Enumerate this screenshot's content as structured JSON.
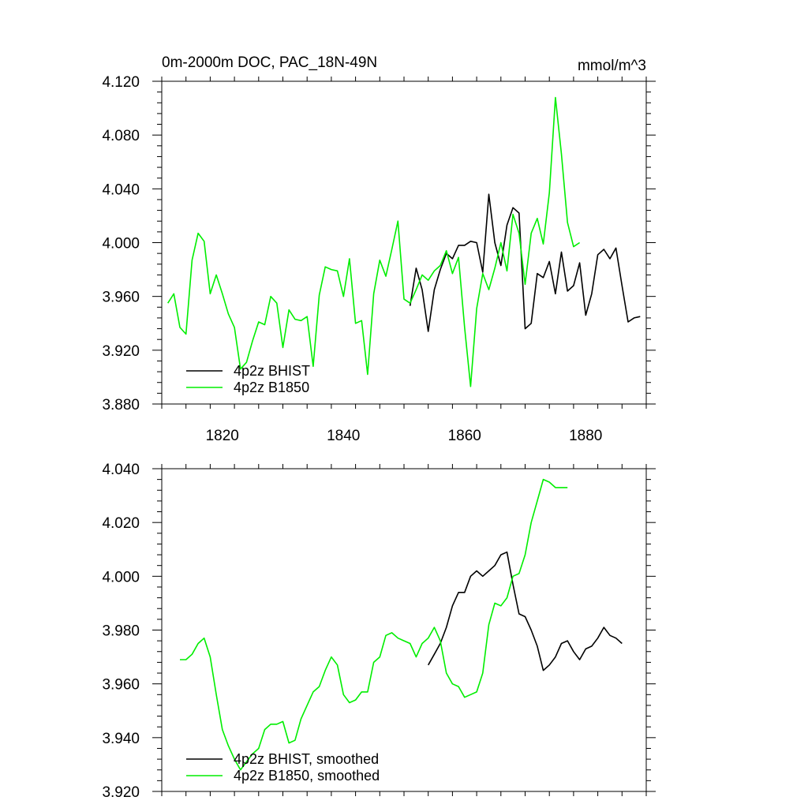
{
  "chart_data": [
    {
      "type": "line",
      "title": "0m-2000m DOC, PAC_18N-49N",
      "units": "mmol/m^3",
      "xlim": [
        1810,
        1890
      ],
      "ylim": [
        3.88,
        4.12
      ],
      "xticks": [
        1820,
        1840,
        1860,
        1880
      ],
      "x_tick_labels": [
        "1820",
        "1840",
        "1860",
        "1880"
      ],
      "yticks": [
        3.88,
        3.92,
        3.96,
        4.0,
        4.04,
        4.08,
        4.12
      ],
      "y_tick_labels": [
        "3.880",
        "3.920",
        "3.960",
        "4.000",
        "4.040",
        "4.080",
        "4.120"
      ],
      "grid": false,
      "legend_position": "bottom-left",
      "series": [
        {
          "name": "4p2z BHIST",
          "color": "#000000",
          "x": [
            1851,
            1852,
            1853,
            1854,
            1855,
            1856,
            1857,
            1858,
            1859,
            1860,
            1861,
            1862,
            1863,
            1864,
            1865,
            1866,
            1867,
            1868,
            1869,
            1870,
            1871,
            1872,
            1873,
            1874,
            1875,
            1876,
            1877,
            1878,
            1879,
            1880,
            1881,
            1882,
            1883,
            1884,
            1885,
            1886,
            1887,
            1888,
            1889
          ],
          "y": [
            3.953,
            3.981,
            3.965,
            3.934,
            3.965,
            3.98,
            3.992,
            3.988,
            3.998,
            3.998,
            4.001,
            4.0,
            3.978,
            4.036,
            4.0,
            3.983,
            4.013,
            4.026,
            4.022,
            3.936,
            3.94,
            3.977,
            3.974,
            3.986,
            3.962,
            3.993,
            3.964,
            3.968,
            3.985,
            3.946,
            3.962,
            3.991,
            3.995,
            3.988,
            3.996,
            3.968,
            3.941,
            3.944,
            3.945
          ]
        },
        {
          "name": "4p2z B1850",
          "color": "#00ee00",
          "x": [
            1811,
            1812,
            1813,
            1814,
            1815,
            1816,
            1817,
            1818,
            1819,
            1820,
            1821,
            1822,
            1823,
            1824,
            1825,
            1826,
            1827,
            1828,
            1829,
            1830,
            1831,
            1832,
            1833,
            1834,
            1835,
            1836,
            1837,
            1838,
            1839,
            1840,
            1841,
            1842,
            1843,
            1844,
            1845,
            1846,
            1847,
            1848,
            1849,
            1850,
            1851,
            1852,
            1853,
            1854,
            1855,
            1856,
            1857,
            1858,
            1859,
            1860,
            1861,
            1862,
            1863,
            1864,
            1865,
            1866,
            1867,
            1868,
            1869,
            1870,
            1871,
            1872,
            1873,
            1874,
            1875,
            1876,
            1877,
            1878,
            1879
          ],
          "y": [
            3.955,
            3.962,
            3.937,
            3.932,
            3.987,
            4.007,
            4.001,
            3.962,
            3.976,
            3.962,
            3.947,
            3.937,
            3.906,
            3.911,
            3.927,
            3.941,
            3.939,
            3.96,
            3.955,
            3.922,
            3.95,
            3.943,
            3.942,
            3.945,
            3.908,
            3.961,
            3.982,
            3.98,
            3.979,
            3.96,
            3.988,
            3.94,
            3.942,
            3.902,
            3.962,
            3.987,
            3.975,
            3.995,
            4.016,
            3.958,
            3.955,
            3.965,
            3.976,
            3.972,
            3.979,
            3.983,
            3.994,
            3.977,
            3.989,
            3.937,
            3.893,
            3.951,
            3.977,
            3.965,
            3.981,
            4.0,
            3.979,
            4.021,
            4.007,
            3.969,
            4.007,
            4.018,
            3.999,
            4.037,
            4.108,
            4.066,
            4.015,
            3.997,
            4.0
          ]
        }
      ]
    },
    {
      "type": "line",
      "xlim": [
        1810,
        1890
      ],
      "ylim": [
        3.92,
        4.04
      ],
      "xticks": [
        1820,
        1840,
        1860,
        1880
      ],
      "yticks": [
        3.92,
        3.94,
        3.96,
        3.98,
        4.0,
        4.02,
        4.04
      ],
      "y_tick_labels": [
        "3.920",
        "3.940",
        "3.960",
        "3.980",
        "4.000",
        "4.020",
        "4.040"
      ],
      "grid": false,
      "legend_position": "bottom-left",
      "series": [
        {
          "name": "4p2z BHIST, smoothed",
          "color": "#000000",
          "x": [
            1854,
            1855,
            1856,
            1857,
            1858,
            1859,
            1860,
            1861,
            1862,
            1863,
            1864,
            1865,
            1866,
            1867,
            1868,
            1869,
            1870,
            1871,
            1872,
            1873,
            1874,
            1875,
            1876,
            1877,
            1878,
            1879,
            1880,
            1881,
            1882,
            1883,
            1884,
            1885,
            1886
          ],
          "y": [
            3.967,
            3.971,
            3.975,
            3.981,
            3.989,
            3.994,
            3.994,
            4.0,
            4.002,
            4.0,
            4.002,
            4.004,
            4.008,
            4.009,
            3.997,
            3.986,
            3.985,
            3.98,
            3.974,
            3.965,
            3.967,
            3.97,
            3.975,
            3.976,
            3.972,
            3.969,
            3.973,
            3.974,
            3.977,
            3.981,
            3.978,
            3.977,
            3.975
          ]
        },
        {
          "name": "4p2z B1850, smoothed",
          "color": "#00ee00",
          "x": [
            1813,
            1814,
            1815,
            1816,
            1817,
            1818,
            1819,
            1820,
            1821,
            1822,
            1823,
            1824,
            1825,
            1826,
            1827,
            1828,
            1829,
            1830,
            1831,
            1832,
            1833,
            1834,
            1835,
            1836,
            1837,
            1838,
            1839,
            1840,
            1841,
            1842,
            1843,
            1844,
            1845,
            1846,
            1847,
            1848,
            1849,
            1850,
            1851,
            1852,
            1853,
            1854,
            1855,
            1856,
            1857,
            1858,
            1859,
            1860,
            1861,
            1862,
            1863,
            1864,
            1865,
            1866,
            1867,
            1868,
            1869,
            1870,
            1871,
            1872,
            1873,
            1874,
            1875,
            1876,
            1877
          ],
          "y": [
            3.969,
            3.969,
            3.971,
            3.975,
            3.977,
            3.97,
            3.956,
            3.943,
            3.937,
            3.932,
            3.928,
            3.931,
            3.934,
            3.936,
            3.943,
            3.945,
            3.945,
            3.946,
            3.938,
            3.939,
            3.947,
            3.952,
            3.957,
            3.959,
            3.965,
            3.97,
            3.967,
            3.956,
            3.953,
            3.954,
            3.957,
            3.957,
            3.968,
            3.97,
            3.978,
            3.979,
            3.977,
            3.976,
            3.975,
            3.97,
            3.975,
            3.977,
            3.981,
            3.976,
            3.964,
            3.96,
            3.959,
            3.955,
            3.956,
            3.957,
            3.964,
            3.982,
            3.99,
            3.989,
            3.992,
            4.0,
            4.001,
            4.008,
            4.02,
            4.028,
            4.036,
            4.035,
            4.033,
            4.033,
            4.033
          ]
        }
      ]
    }
  ]
}
